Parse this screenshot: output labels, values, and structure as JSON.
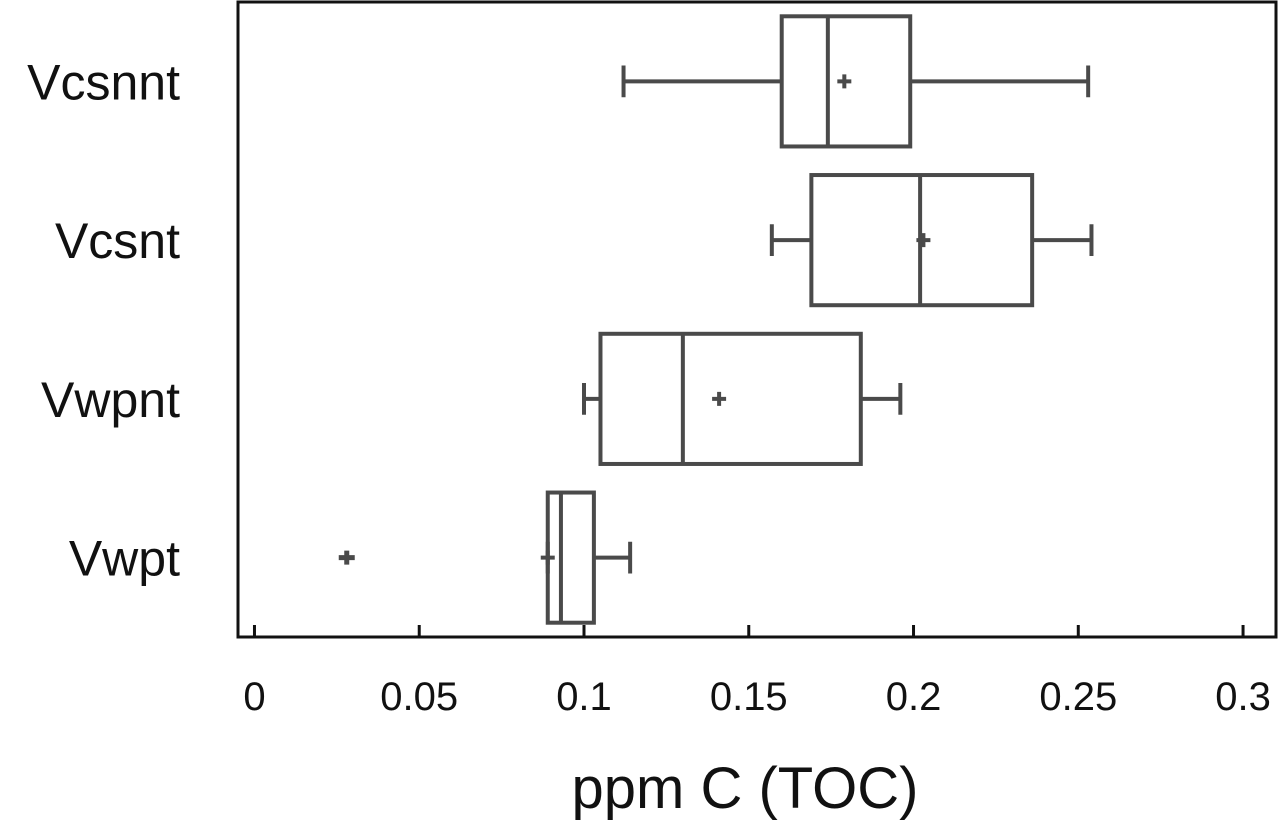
{
  "chart_data": {
    "type": "boxplot",
    "orientation": "horizontal",
    "xlabel": "ppm C (TOC)",
    "ylabel": "",
    "title": "",
    "xlim": [
      -0.005,
      0.31
    ],
    "xticks": [
      0,
      0.05,
      0.1,
      0.15,
      0.2,
      0.25,
      0.3
    ],
    "xtick_labels": [
      "0",
      "0.05",
      "0.1",
      "0.15",
      "0.2",
      "0.25",
      "0.3"
    ],
    "grid": false,
    "colors": {
      "stroke": "#4a4a4a",
      "text": "#111111"
    },
    "categories": [
      "Vcsnnt",
      "Vcsnt",
      "Vwpnt",
      "Vwpt"
    ],
    "boxes": [
      {
        "category": "Vcsnnt",
        "whisker_low": 0.112,
        "q1": 0.16,
        "median": 0.174,
        "q3": 0.199,
        "whisker_high": 0.253,
        "mean": 0.179,
        "outliers": []
      },
      {
        "category": "Vcsnt",
        "whisker_low": 0.157,
        "q1": 0.169,
        "median": 0.202,
        "q3": 0.236,
        "whisker_high": 0.254,
        "mean": 0.203,
        "outliers": []
      },
      {
        "category": "Vwpnt",
        "whisker_low": 0.1,
        "q1": 0.105,
        "median": 0.13,
        "q3": 0.184,
        "whisker_high": 0.196,
        "mean": 0.141,
        "outliers": []
      },
      {
        "category": "Vwpt",
        "whisker_low": 0.089,
        "q1": 0.089,
        "median": 0.093,
        "q3": 0.103,
        "whisker_high": 0.114,
        "mean": 0.089,
        "outliers": [
          0.028
        ]
      }
    ]
  }
}
